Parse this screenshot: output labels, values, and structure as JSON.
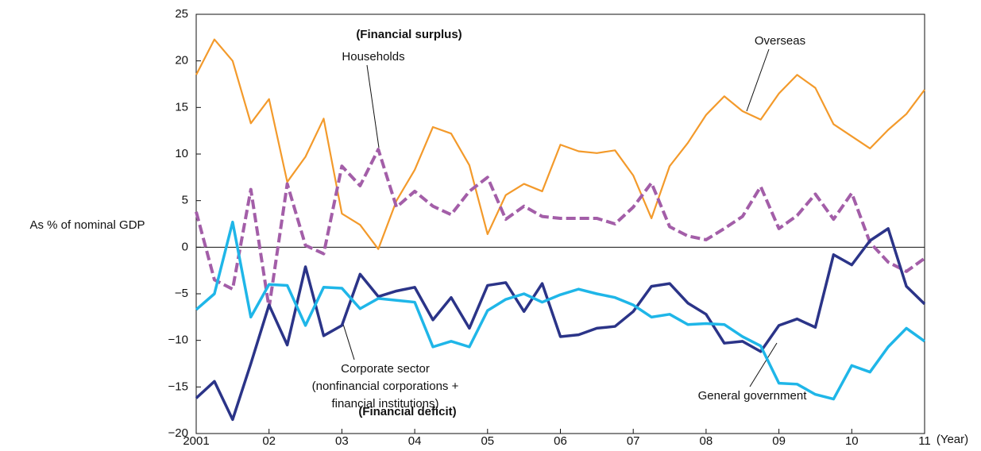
{
  "chart_data": {
    "type": "line",
    "ylabel": "As % of nominal GDP",
    "xlabel": "(Year)",
    "x": [
      2001,
      2001.25,
      2001.5,
      2001.75,
      2002,
      2002.25,
      2002.5,
      2002.75,
      2003,
      2003.25,
      2003.5,
      2003.75,
      2004,
      2004.25,
      2004.5,
      2004.75,
      2005,
      2005.25,
      2005.5,
      2005.75,
      2006,
      2006.25,
      2006.5,
      2006.75,
      2007,
      2007.25,
      2007.5,
      2007.75,
      2008,
      2008.25,
      2008.5,
      2008.75,
      2009,
      2009.25,
      2009.5,
      2009.75,
      2010,
      2010.25,
      2010.5,
      2010.75,
      2011
    ],
    "series": [
      {
        "name": "Overseas",
        "color": "#f39a2b",
        "width": 2.2,
        "dashed": false,
        "values": [
          18.5,
          22.3,
          20,
          13.3,
          15.9,
          7,
          9.7,
          13.8,
          3.6,
          2.4,
          -0.2,
          5,
          8.3,
          12.9,
          12.2,
          8.8,
          1.4,
          5.6,
          6.8,
          6,
          11,
          10.3,
          10.1,
          10.4,
          7.7,
          3.1,
          8.7,
          11.2,
          14.2,
          16.2,
          14.6,
          13.7,
          16.5,
          18.5,
          17.1,
          13.2,
          11.9,
          10.6,
          12.6,
          14.3,
          16.9
        ]
      },
      {
        "name": "Households",
        "color": "#a35ea8",
        "width": 4,
        "dashed": true,
        "values": [
          3.8,
          -3.5,
          -4.5,
          6.2,
          -6.5,
          6.8,
          0.2,
          -0.7,
          8.7,
          6.6,
          10.5,
          4.3,
          6,
          4.4,
          3.5,
          6,
          7.5,
          3,
          4.4,
          3.3,
          3.1,
          3.1,
          3.1,
          2.5,
          4.3,
          6.9,
          2.2,
          1.2,
          0.8,
          2,
          3.3,
          6.5,
          2,
          3.4,
          5.7,
          3,
          5.8,
          0.5,
          -1.6,
          -2.6,
          -1.2
        ]
      },
      {
        "name": "Corporate sector",
        "color": "#2b3488",
        "width": 3.5,
        "dashed": false,
        "values": [
          -16.2,
          -14.4,
          -18.5,
          -12.5,
          -6.2,
          -10.5,
          -2.1,
          -9.5,
          -8.4,
          -2.9,
          -5.3,
          -4.7,
          -4.3,
          -7.8,
          -5.4,
          -8.7,
          -4.1,
          -3.8,
          -6.9,
          -3.9,
          -9.6,
          -9.4,
          -8.7,
          -8.5,
          -6.9,
          -4.2,
          -3.9,
          -6,
          -7.2,
          -10.3,
          -10.1,
          -11.2,
          -8.4,
          -7.7,
          -8.6,
          -0.8,
          -1.9,
          0.7,
          2,
          -4.2,
          -6.1
        ]
      },
      {
        "name": "General government",
        "color": "#1fb6e8",
        "width": 3.5,
        "dashed": false,
        "values": [
          -6.7,
          -5,
          2.7,
          -7.5,
          -4,
          -4.1,
          -8.4,
          -4.3,
          -4.4,
          -6.6,
          -5.5,
          -5.7,
          -5.9,
          -10.7,
          -10.1,
          -10.7,
          -6.8,
          -5.6,
          -5,
          -5.9,
          -5.1,
          -4.5,
          -5,
          -5.4,
          -6.2,
          -7.5,
          -7.2,
          -8.3,
          -8.2,
          -8.3,
          -9.6,
          -10.6,
          -14.6,
          -14.7,
          -15.8,
          -16.3,
          -12.7,
          -13.4,
          -10.7,
          -8.7,
          -10.1
        ]
      }
    ],
    "annotations": [
      "(Financial surplus)",
      "(Financial deficit)",
      "(nonfinancial corporations +",
      "financial institutions)"
    ],
    "xlim": [
      2001,
      2011
    ],
    "xticks": [
      {
        "value": 2001,
        "label": "2001"
      },
      {
        "value": 2002,
        "label": "02"
      },
      {
        "value": 2003,
        "label": "03"
      },
      {
        "value": 2004,
        "label": "04"
      },
      {
        "value": 2005,
        "label": "05"
      },
      {
        "value": 2006,
        "label": "06"
      },
      {
        "value": 2007,
        "label": "07"
      },
      {
        "value": 2008,
        "label": "08"
      },
      {
        "value": 2009,
        "label": "09"
      },
      {
        "value": 2010,
        "label": "10"
      },
      {
        "value": 2011,
        "label": "11"
      }
    ],
    "ylim": [
      -20,
      25
    ],
    "yticks": [
      {
        "value": -20,
        "label": "−20"
      },
      {
        "value": -15,
        "label": "−15"
      },
      {
        "value": -10,
        "label": "−10"
      },
      {
        "value": -5,
        "label": "−5"
      },
      0,
      5,
      10,
      15,
      20,
      25
    ],
    "grid": false
  }
}
